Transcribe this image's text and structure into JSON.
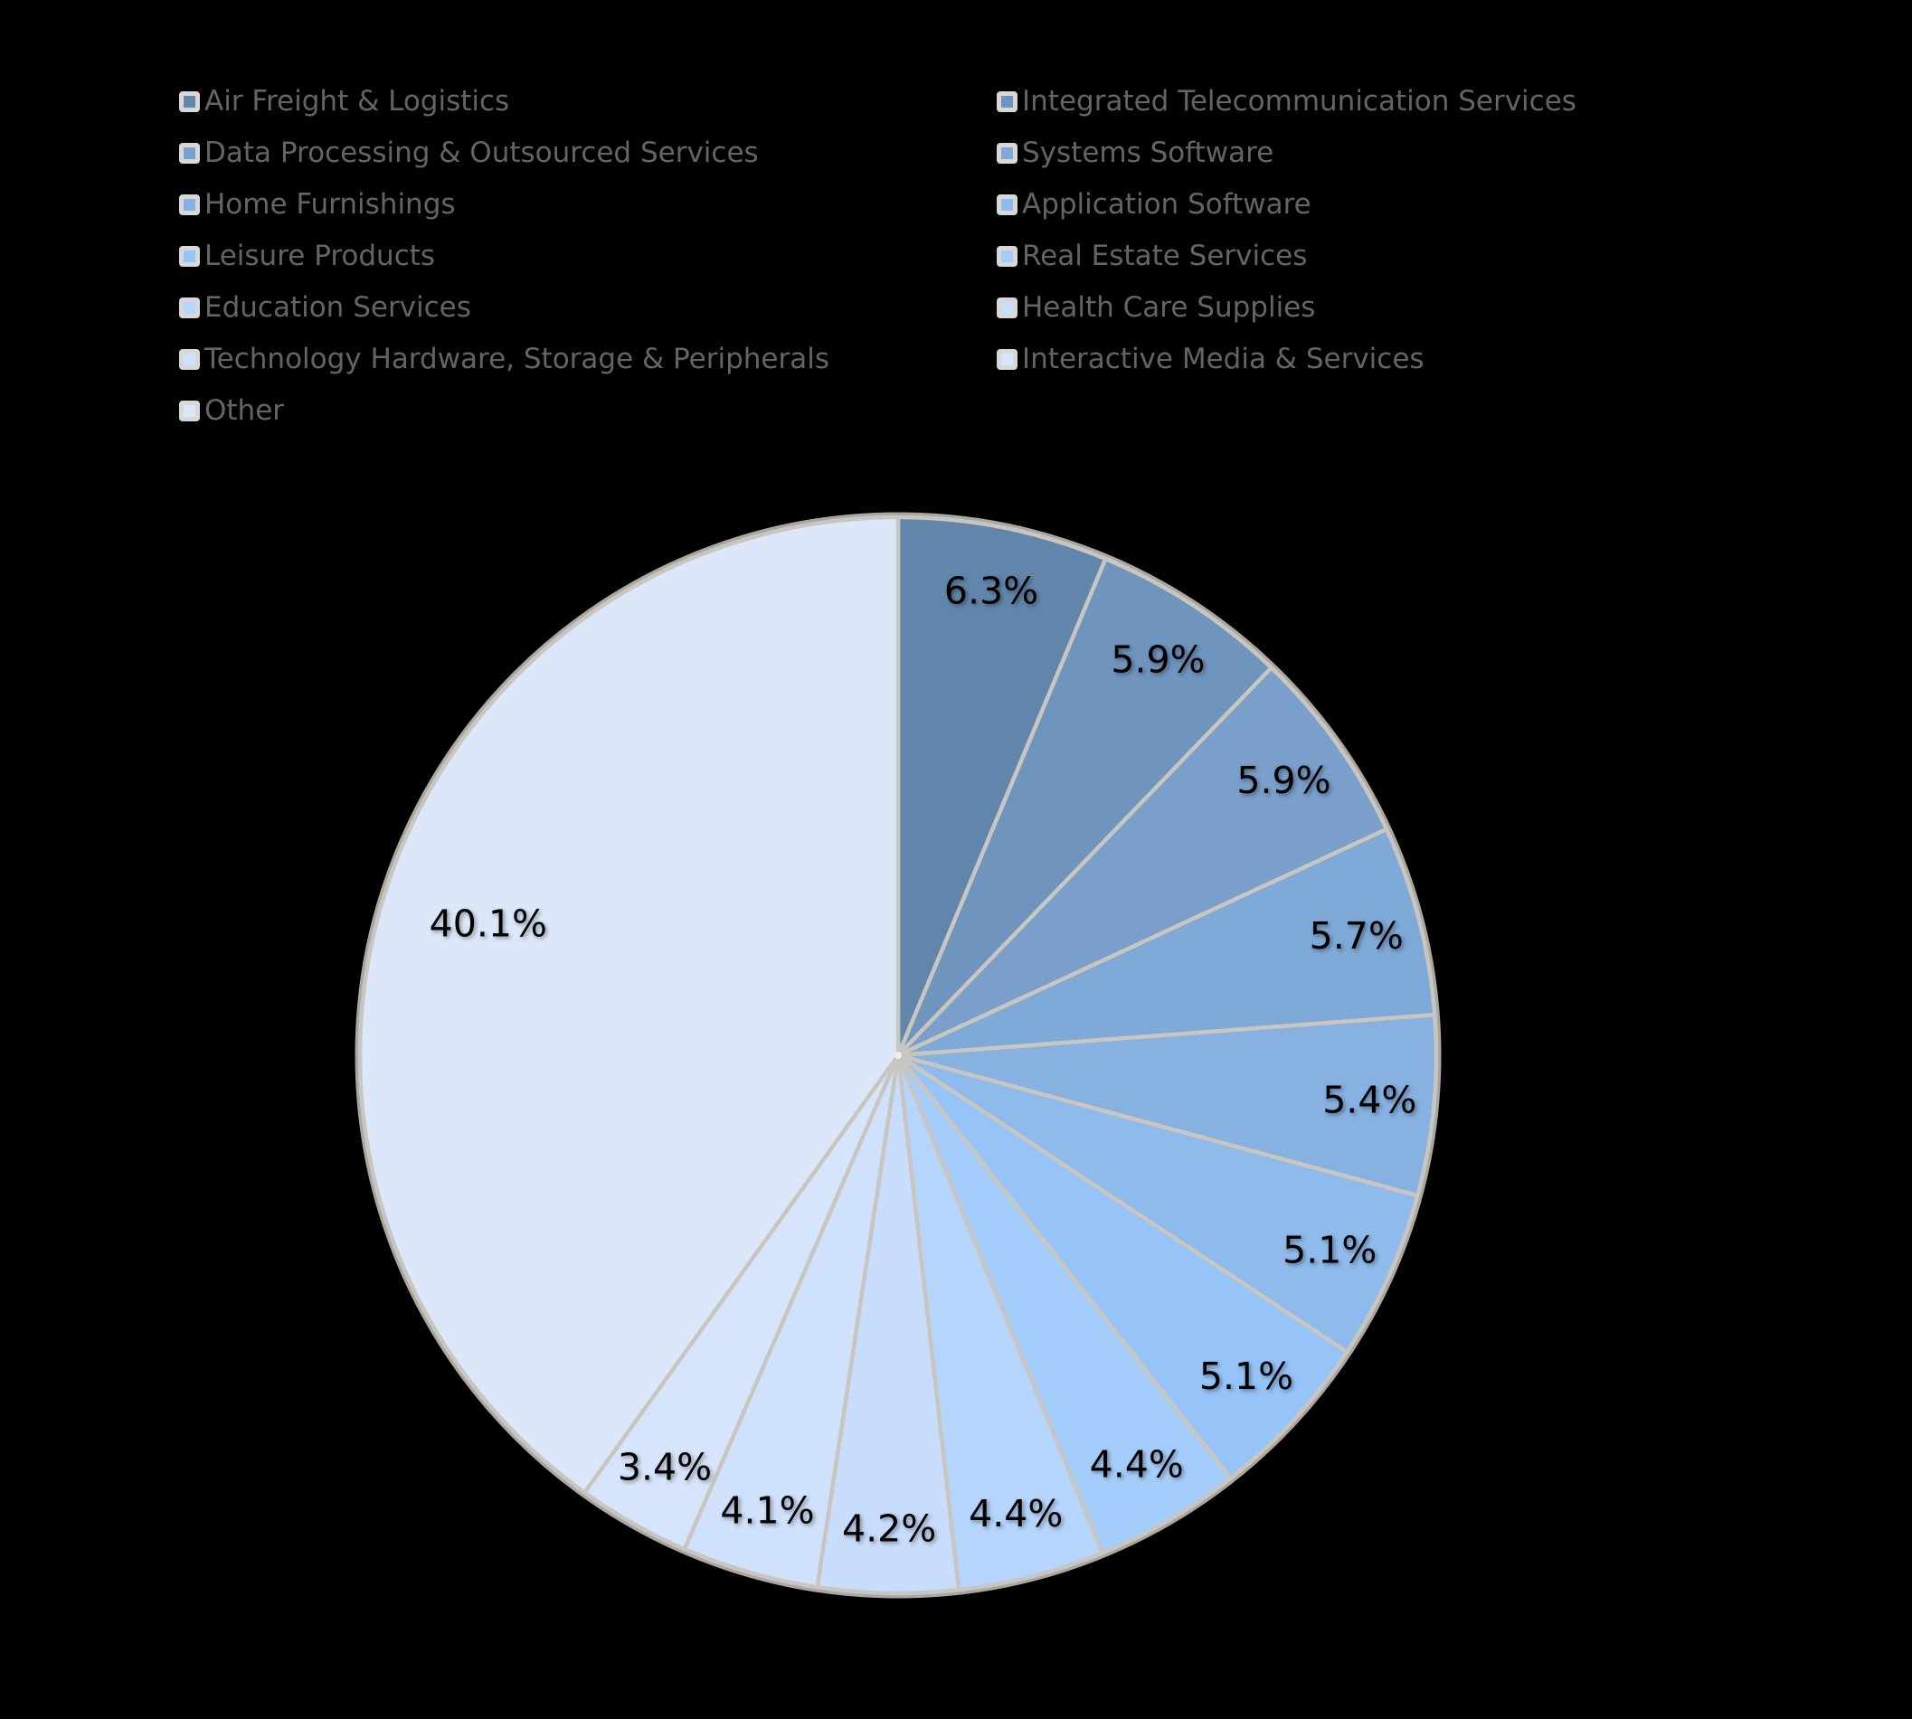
{
  "background_color": "#000000",
  "legend": {
    "position": "top",
    "text_color": "#646464",
    "swatch_border_color": "#d8d8d8",
    "columns": [
      [
        0,
        2,
        4,
        6,
        8,
        10,
        12
      ],
      [
        1,
        3,
        5,
        7,
        9,
        11
      ]
    ]
  },
  "chart_data": {
    "type": "pie",
    "title": "",
    "categories": [
      "Air Freight & Logistics",
      "Integrated Telecommunication Services",
      "Data Processing & Outsourced Services",
      "Systems Software",
      "Home Furnishings",
      "Application Software",
      "Leisure Products",
      "Real Estate Services",
      "Education Services",
      "Health Care Supplies",
      "Technology Hardware, Storage & Peripherals",
      "Interactive Media & Services",
      "Other"
    ],
    "values": [
      6.3,
      5.9,
      5.9,
      5.7,
      5.4,
      5.1,
      5.1,
      4.4,
      4.4,
      4.2,
      4.1,
      3.4,
      40.1
    ],
    "labels": [
      "6.3%",
      "5.9%",
      "5.9%",
      "5.7%",
      "5.4%",
      "5.1%",
      "5.1%",
      "4.4%",
      "4.4%",
      "4.2%",
      "4.1%",
      "3.4%",
      "40.1%"
    ],
    "unit": "%",
    "colors": [
      "#6286ab",
      "#6f94be",
      "#7a9fca",
      "#7fa9d6",
      "#87b1e0",
      "#8ebbec",
      "#96c4f8",
      "#a5cdfb",
      "#b5d5fc",
      "#c8dcfc",
      "#cfe1fb",
      "#d6e5fb",
      "#dce8fa"
    ],
    "start_angle_deg": 0,
    "direction": "clockwise",
    "legend_position": "top",
    "slice_border_color": "#c9c6c1",
    "outer_rim_color": "#aaa7a2",
    "label_text_color": "#000000"
  }
}
